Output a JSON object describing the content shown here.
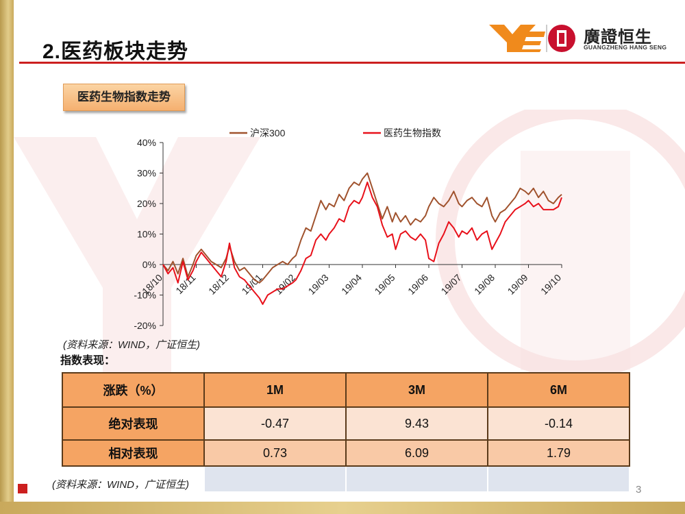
{
  "slide": {
    "title": "2.医药板块走势",
    "section_label": "医药生物指数走势",
    "source_note_chart": "(资料来源：WIND，广证恒生)",
    "performance_label": "指数表现：",
    "source_note_table": "(资料来源：WIND，广证恒生)",
    "page_number": "3"
  },
  "logo": {
    "brand_cn": "廣證恒生",
    "brand_en": "GUANGZHENG HANG SENG",
    "colors": {
      "orange": "#f08a1c",
      "red": "#c8102e"
    }
  },
  "colors": {
    "hs300": "#a0522d",
    "pharma": "#e8101a",
    "accent_red": "#cc1f1f",
    "gold": "#c9a95c"
  },
  "chart_data": {
    "type": "line",
    "legend_position": "top",
    "ylim": [
      -0.2,
      0.4
    ],
    "yticks": [
      -0.2,
      -0.1,
      0,
      0.1,
      0.2,
      0.3,
      0.4
    ],
    "ytick_labels": [
      "-20%",
      "-10%",
      "0%",
      "10%",
      "20%",
      "30%",
      "40%"
    ],
    "x_ticks": [
      "18/10",
      "18/11",
      "18/12",
      "19/01",
      "19/02",
      "19/03",
      "19/04",
      "19/05",
      "19/06",
      "19/07",
      "19/08",
      "19/09",
      "19/10"
    ],
    "x_tick_positions": [
      0,
      1,
      2,
      3,
      4,
      5,
      6,
      7,
      8,
      9,
      10,
      11,
      12
    ],
    "series": [
      {
        "name": "沪深300",
        "color": "#a0522d",
        "x": [
          0,
          0.15,
          0.3,
          0.45,
          0.6,
          0.75,
          0.9,
          1.0,
          1.15,
          1.3,
          1.45,
          1.6,
          1.75,
          1.9,
          2.0,
          2.15,
          2.3,
          2.45,
          2.6,
          2.75,
          2.9,
          3.0,
          3.15,
          3.3,
          3.45,
          3.6,
          3.75,
          3.9,
          4.0,
          4.15,
          4.3,
          4.45,
          4.6,
          4.75,
          4.9,
          5.0,
          5.15,
          5.3,
          5.45,
          5.6,
          5.75,
          5.9,
          6.0,
          6.15,
          6.3,
          6.45,
          6.6,
          6.75,
          6.9,
          7.0,
          7.15,
          7.3,
          7.45,
          7.6,
          7.75,
          7.9,
          8.0,
          8.15,
          8.3,
          8.45,
          8.6,
          8.75,
          8.9,
          9.0,
          9.15,
          9.3,
          9.45,
          9.6,
          9.75,
          9.9,
          10.0,
          10.15,
          10.3,
          10.45,
          10.6,
          10.75,
          10.9,
          11.0,
          11.15,
          11.3,
          11.45,
          11.6,
          11.75,
          11.9,
          12.0
        ],
        "values": [
          0,
          -0.02,
          0.01,
          -0.03,
          0.02,
          -0.04,
          0.0,
          0.03,
          0.05,
          0.03,
          0.01,
          0.0,
          -0.01,
          0.02,
          0.06,
          0.01,
          -0.02,
          -0.01,
          -0.03,
          -0.05,
          -0.06,
          -0.05,
          -0.03,
          -0.01,
          0.0,
          0.01,
          0.0,
          0.02,
          0.03,
          0.08,
          0.12,
          0.11,
          0.16,
          0.21,
          0.18,
          0.2,
          0.19,
          0.23,
          0.21,
          0.25,
          0.27,
          0.26,
          0.28,
          0.3,
          0.25,
          0.2,
          0.15,
          0.19,
          0.14,
          0.17,
          0.14,
          0.16,
          0.13,
          0.15,
          0.14,
          0.16,
          0.19,
          0.22,
          0.2,
          0.19,
          0.21,
          0.24,
          0.2,
          0.19,
          0.21,
          0.22,
          0.2,
          0.19,
          0.22,
          0.16,
          0.14,
          0.17,
          0.18,
          0.2,
          0.22,
          0.25,
          0.24,
          0.23,
          0.25,
          0.22,
          0.24,
          0.21,
          0.2,
          0.22,
          0.23
        ]
      },
      {
        "name": "医药生物指数",
        "color": "#e8101a",
        "x": [
          0,
          0.15,
          0.3,
          0.45,
          0.6,
          0.75,
          0.9,
          1.0,
          1.15,
          1.3,
          1.45,
          1.6,
          1.75,
          1.9,
          2.0,
          2.15,
          2.3,
          2.45,
          2.6,
          2.75,
          2.9,
          3.0,
          3.15,
          3.3,
          3.45,
          3.6,
          3.75,
          3.9,
          4.0,
          4.15,
          4.3,
          4.45,
          4.6,
          4.75,
          4.9,
          5.0,
          5.15,
          5.3,
          5.45,
          5.6,
          5.75,
          5.9,
          6.0,
          6.15,
          6.3,
          6.45,
          6.6,
          6.75,
          6.9,
          7.0,
          7.15,
          7.3,
          7.45,
          7.6,
          7.75,
          7.9,
          8.0,
          8.15,
          8.3,
          8.45,
          8.6,
          8.75,
          8.9,
          9.0,
          9.15,
          9.3,
          9.45,
          9.6,
          9.75,
          9.9,
          10.0,
          10.15,
          10.3,
          10.45,
          10.6,
          10.75,
          10.9,
          11.0,
          11.15,
          11.3,
          11.45,
          11.6,
          11.75,
          11.9,
          12.0
        ],
        "values": [
          0,
          -0.03,
          -0.01,
          -0.06,
          0.01,
          -0.05,
          -0.02,
          0.01,
          0.04,
          0.02,
          0.0,
          -0.02,
          -0.04,
          0.01,
          0.07,
          -0.01,
          -0.04,
          -0.05,
          -0.07,
          -0.09,
          -0.11,
          -0.13,
          -0.1,
          -0.09,
          -0.08,
          -0.08,
          -0.07,
          -0.06,
          -0.05,
          -0.02,
          0.02,
          0.03,
          0.08,
          0.1,
          0.08,
          0.1,
          0.12,
          0.15,
          0.14,
          0.19,
          0.21,
          0.2,
          0.22,
          0.27,
          0.22,
          0.19,
          0.13,
          0.09,
          0.1,
          0.05,
          0.1,
          0.11,
          0.09,
          0.08,
          0.1,
          0.08,
          0.02,
          0.01,
          0.07,
          0.1,
          0.14,
          0.12,
          0.09,
          0.11,
          0.1,
          0.12,
          0.08,
          0.1,
          0.11,
          0.05,
          0.07,
          0.1,
          0.14,
          0.16,
          0.18,
          0.19,
          0.2,
          0.21,
          0.19,
          0.2,
          0.18,
          0.18,
          0.18,
          0.19,
          0.22
        ]
      }
    ]
  },
  "table": {
    "headers": [
      "涨跌（%）",
      "1M",
      "3M",
      "6M"
    ],
    "rows": [
      {
        "label": "绝对表现",
        "values": [
          "-0.47",
          "9.43",
          "-0.14"
        ]
      },
      {
        "label": "相对表现",
        "values": [
          "0.73",
          "6.09",
          "1.79"
        ]
      }
    ]
  }
}
